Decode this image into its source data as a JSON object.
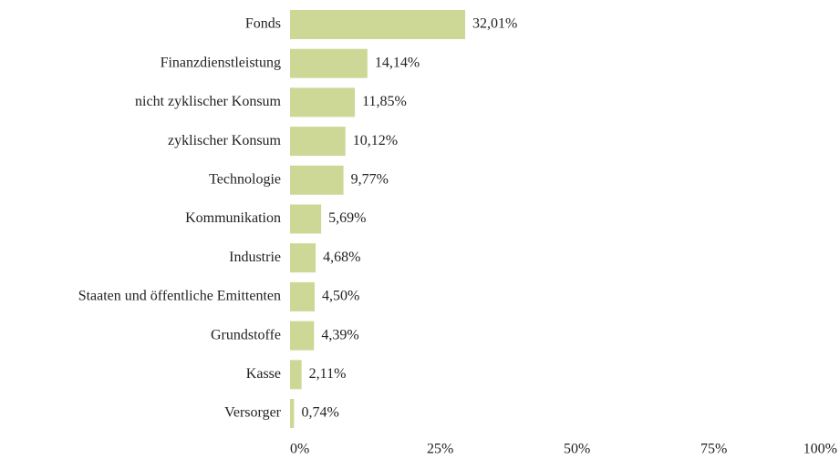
{
  "chart_data": {
    "type": "barh",
    "categories": [
      "Fonds",
      "Finanzdienstleistung",
      "nicht zyklischer Konsum",
      "zyklischer Konsum",
      "Technologie",
      "Kommunikation",
      "Industrie",
      "Staaten und öffentliche Emittenten",
      "Grundstoffe",
      "Kasse",
      "Versorger"
    ],
    "values": [
      32.01,
      14.14,
      11.85,
      10.12,
      9.77,
      5.69,
      4.68,
      4.5,
      4.39,
      2.11,
      0.74
    ],
    "value_labels": [
      "32,01%",
      "14,14%",
      "11,85%",
      "10,12%",
      "9,77%",
      "5,69%",
      "4,68%",
      "4,50%",
      "4,39%",
      "2,11%",
      "0,74%"
    ],
    "color": "#cdd896",
    "xlim": [
      0,
      100
    ],
    "xticks": [
      {
        "value": 0,
        "label": "0%"
      },
      {
        "value": 25,
        "label": "25%"
      },
      {
        "value": 50,
        "label": "50%"
      },
      {
        "value": 75,
        "label": "75%"
      },
      {
        "value": 100,
        "label": "100%"
      }
    ]
  }
}
